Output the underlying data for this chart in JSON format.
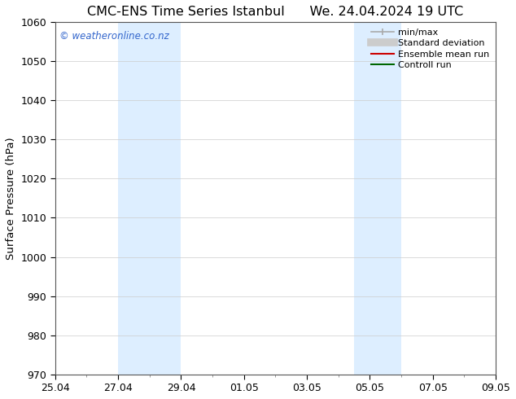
{
  "title_left": "CMC-ENS Time Series Istanbul",
  "title_right": "We. 24.04.2024 19 UTC",
  "ylabel": "Surface Pressure (hPa)",
  "ylim": [
    970,
    1060
  ],
  "yticks": [
    970,
    980,
    990,
    1000,
    1010,
    1020,
    1030,
    1040,
    1050,
    1060
  ],
  "xtick_labels": [
    "25.04",
    "27.04",
    "29.04",
    "01.05",
    "03.05",
    "05.05",
    "07.05",
    "09.05"
  ],
  "xtick_positions": [
    0,
    2,
    4,
    6,
    8,
    10,
    12,
    14
  ],
  "total_days": 14,
  "shaded_bands": [
    {
      "x_start": 2,
      "x_end": 4
    },
    {
      "x_start": 9.5,
      "x_end": 11.0
    }
  ],
  "band_color": "#ddeeff",
  "watermark_text": "© weatheronline.co.nz",
  "watermark_color": "#3366cc",
  "legend_items": [
    {
      "label": "min/max",
      "color": "#aaaaaa",
      "lw": 1.5
    },
    {
      "label": "Standard deviation",
      "color": "#cccccc",
      "lw": 7
    },
    {
      "label": "Ensemble mean run",
      "color": "#cc0000",
      "lw": 1.5
    },
    {
      "label": "Controll run",
      "color": "#006600",
      "lw": 1.5
    }
  ],
  "bg_color": "#ffffff",
  "grid_color": "#cccccc",
  "title_fontsize": 11.5,
  "axis_label_fontsize": 9.5,
  "tick_fontsize": 9
}
